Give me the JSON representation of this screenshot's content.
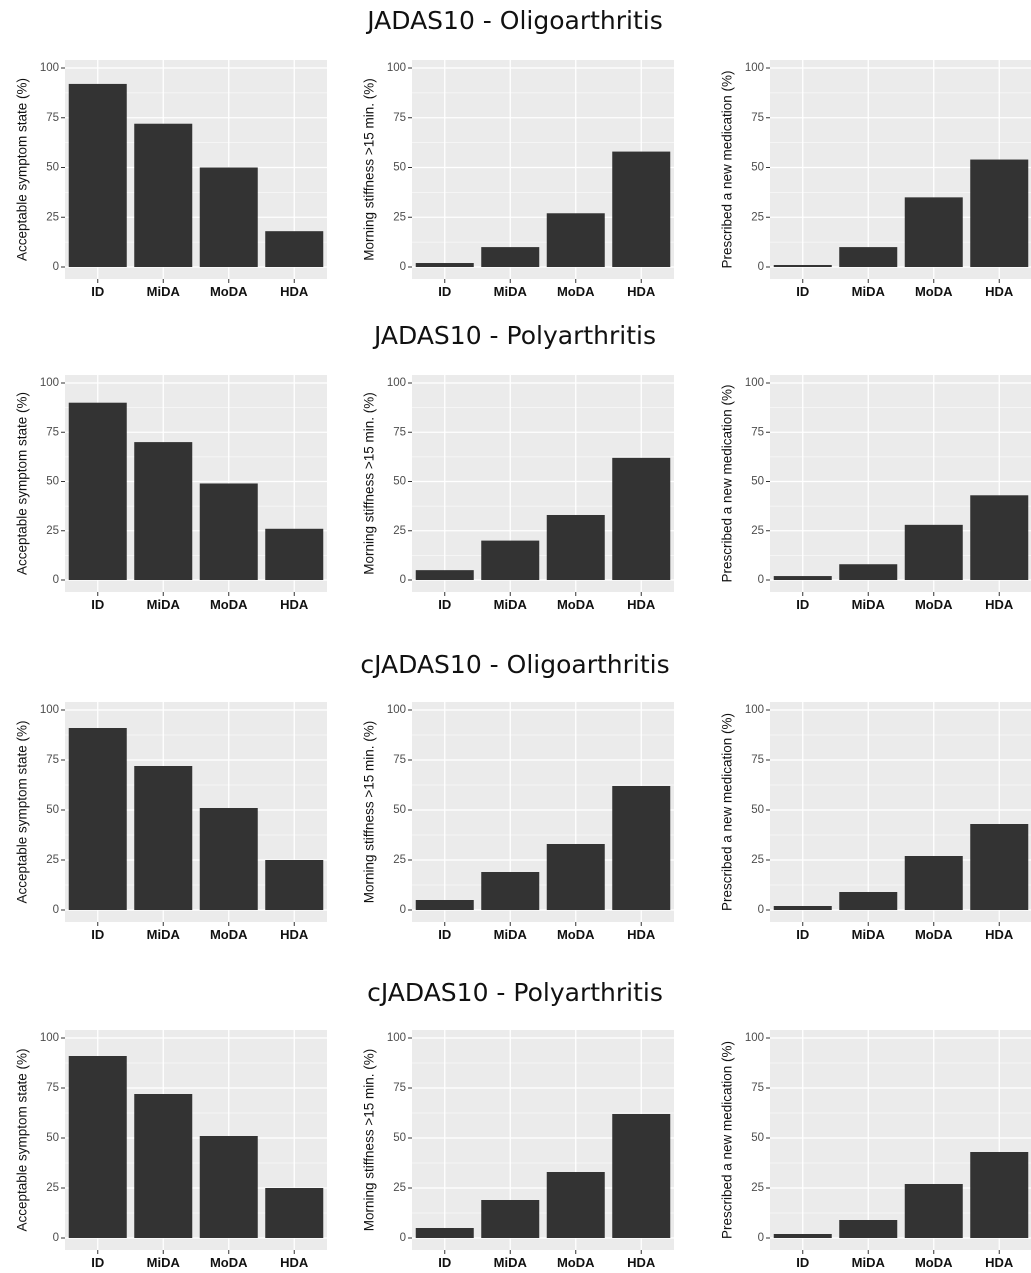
{
  "colors": {
    "panel_bg": "#ebebeb",
    "grid": "#ffffff",
    "bar": "#333333"
  },
  "rows": [
    {
      "title": "JADAS10 - Oligoarthritis"
    },
    {
      "title": "JADAS10 - Polyarthritis"
    },
    {
      "title": "cJADAS10 - Oligoarthritis"
    },
    {
      "title": "cJADAS10 - Polyarthritis"
    }
  ],
  "chart_data": [
    {
      "type": "bar",
      "group": "JADAS10 - Oligoarthritis",
      "title": "",
      "xlabel": "",
      "ylabel": "Acceptable symptom state (%)",
      "categories": [
        "ID",
        "MiDA",
        "MoDA",
        "HDA"
      ],
      "values": [
        92,
        72,
        50,
        18
      ],
      "ylim": [
        0,
        100
      ],
      "yticks": [
        0,
        25,
        50,
        75,
        100
      ],
      "grid": true
    },
    {
      "type": "bar",
      "group": "JADAS10 - Oligoarthritis",
      "title": "",
      "xlabel": "",
      "ylabel": "Morning stiffness >15 min. (%)",
      "categories": [
        "ID",
        "MiDA",
        "MoDA",
        "HDA"
      ],
      "values": [
        2,
        10,
        27,
        58
      ],
      "ylim": [
        0,
        100
      ],
      "yticks": [
        0,
        25,
        50,
        75,
        100
      ],
      "grid": true
    },
    {
      "type": "bar",
      "group": "JADAS10 - Oligoarthritis",
      "title": "",
      "xlabel": "",
      "ylabel": "Prescribed a new medication (%)",
      "categories": [
        "ID",
        "MiDA",
        "MoDA",
        "HDA"
      ],
      "values": [
        1,
        10,
        35,
        54
      ],
      "ylim": [
        0,
        100
      ],
      "yticks": [
        0,
        25,
        50,
        75,
        100
      ],
      "grid": true
    },
    {
      "type": "bar",
      "group": "JADAS10 - Polyarthritis",
      "title": "",
      "xlabel": "",
      "ylabel": "Acceptable symptom state (%)",
      "categories": [
        "ID",
        "MiDA",
        "MoDA",
        "HDA"
      ],
      "values": [
        90,
        70,
        49,
        26
      ],
      "ylim": [
        0,
        100
      ],
      "yticks": [
        0,
        25,
        50,
        75,
        100
      ],
      "grid": true
    },
    {
      "type": "bar",
      "group": "JADAS10 - Polyarthritis",
      "title": "",
      "xlabel": "",
      "ylabel": "Morning stiffness >15 min. (%)",
      "categories": [
        "ID",
        "MiDA",
        "MoDA",
        "HDA"
      ],
      "values": [
        5,
        20,
        33,
        62
      ],
      "ylim": [
        0,
        100
      ],
      "yticks": [
        0,
        25,
        50,
        75,
        100
      ],
      "grid": true
    },
    {
      "type": "bar",
      "group": "JADAS10 - Polyarthritis",
      "title": "",
      "xlabel": "",
      "ylabel": "Prescribed a new medication (%)",
      "categories": [
        "ID",
        "MiDA",
        "MoDA",
        "HDA"
      ],
      "values": [
        2,
        8,
        28,
        43
      ],
      "ylim": [
        0,
        100
      ],
      "yticks": [
        0,
        25,
        50,
        75,
        100
      ],
      "grid": true
    },
    {
      "type": "bar",
      "group": "cJADAS10 - Oligoarthritis",
      "title": "",
      "xlabel": "",
      "ylabel": "Acceptable symptom state (%)",
      "categories": [
        "ID",
        "MiDA",
        "MoDA",
        "HDA"
      ],
      "values": [
        91,
        72,
        51,
        25
      ],
      "ylim": [
        0,
        100
      ],
      "yticks": [
        0,
        25,
        50,
        75,
        100
      ],
      "grid": true
    },
    {
      "type": "bar",
      "group": "cJADAS10 - Oligoarthritis",
      "title": "",
      "xlabel": "",
      "ylabel": "Morning stiffness >15 min. (%)",
      "categories": [
        "ID",
        "MiDA",
        "MoDA",
        "HDA"
      ],
      "values": [
        5,
        19,
        33,
        62
      ],
      "ylim": [
        0,
        100
      ],
      "yticks": [
        0,
        25,
        50,
        75,
        100
      ],
      "grid": true
    },
    {
      "type": "bar",
      "group": "cJADAS10 - Oligoarthritis",
      "title": "",
      "xlabel": "",
      "ylabel": "Prescribed a new medication (%)",
      "categories": [
        "ID",
        "MiDA",
        "MoDA",
        "HDA"
      ],
      "values": [
        2,
        9,
        27,
        43
      ],
      "ylim": [
        0,
        100
      ],
      "yticks": [
        0,
        25,
        50,
        75,
        100
      ],
      "grid": true
    },
    {
      "type": "bar",
      "group": "cJADAS10 - Polyarthritis",
      "title": "",
      "xlabel": "",
      "ylabel": "Acceptable symptom state (%)",
      "categories": [
        "ID",
        "MiDA",
        "MoDA",
        "HDA"
      ],
      "values": [
        91,
        72,
        51,
        25
      ],
      "ylim": [
        0,
        100
      ],
      "yticks": [
        0,
        25,
        50,
        75,
        100
      ],
      "grid": true
    },
    {
      "type": "bar",
      "group": "cJADAS10 - Polyarthritis",
      "title": "",
      "xlabel": "",
      "ylabel": "Morning stiffness >15 min. (%)",
      "categories": [
        "ID",
        "MiDA",
        "MoDA",
        "HDA"
      ],
      "values": [
        5,
        19,
        33,
        62
      ],
      "ylim": [
        0,
        100
      ],
      "yticks": [
        0,
        25,
        50,
        75,
        100
      ],
      "grid": true
    },
    {
      "type": "bar",
      "group": "cJADAS10 - Polyarthritis",
      "title": "",
      "xlabel": "",
      "ylabel": "Prescribed a new medication (%)",
      "categories": [
        "ID",
        "MiDA",
        "MoDA",
        "HDA"
      ],
      "values": [
        2,
        9,
        27,
        43
      ],
      "ylim": [
        0,
        100
      ],
      "yticks": [
        0,
        25,
        50,
        75,
        100
      ],
      "grid": true
    }
  ]
}
